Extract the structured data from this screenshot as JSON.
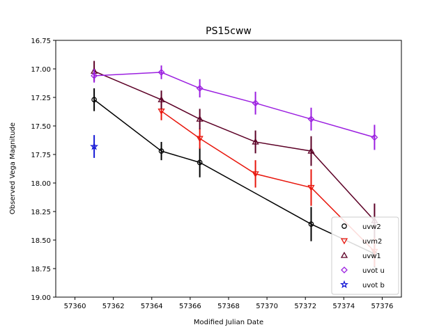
{
  "chart_data": {
    "type": "scatter",
    "title": "PS15cww",
    "xlabel": "Modified Julian Date",
    "ylabel": "Observed Vega Magnitude",
    "xlim": [
      57359,
      57377
    ],
    "ylim": [
      16.75,
      19.0
    ],
    "y_inverted": true,
    "xticks": [
      57360,
      57362,
      57364,
      57366,
      57368,
      57370,
      57372,
      57374,
      57376
    ],
    "yticks": [
      16.75,
      17.0,
      17.25,
      17.5,
      17.75,
      18.0,
      18.25,
      18.5,
      18.75,
      19.0
    ],
    "xtick_labels": [
      "57360",
      "57362",
      "57364",
      "57366",
      "57368",
      "57370",
      "57372",
      "57374",
      "57376"
    ],
    "ytick_labels": [
      "16.75",
      "17.00",
      "17.25",
      "17.50",
      "17.75",
      "18.00",
      "18.25",
      "18.50",
      "18.75",
      "19.00"
    ],
    "grid": false,
    "legend_position": "lower-right",
    "series": [
      {
        "name": "uvw2",
        "color": "#000000",
        "marker": "circle",
        "x": [
          57361.0,
          57364.5,
          57366.5,
          57372.3,
          57375.6
        ],
        "y": [
          17.27,
          17.72,
          17.82,
          18.36,
          18.62
        ],
        "yerr": [
          0.1,
          0.08,
          0.13,
          0.15,
          0.12
        ]
      },
      {
        "name": "uvm2",
        "color": "#e8160c",
        "marker": "triangle-down",
        "x": [
          57364.5,
          57366.5,
          57369.4,
          57372.3,
          57375.6
        ],
        "y": [
          17.37,
          17.61,
          17.92,
          18.04,
          18.6
        ],
        "yerr": [
          0.08,
          0.09,
          0.12,
          0.16,
          0.13
        ]
      },
      {
        "name": "uvw1",
        "color": "#5c0026",
        "marker": "triangle-up",
        "x": [
          57361.0,
          57364.5,
          57366.5,
          57369.4,
          57372.3,
          57375.6
        ],
        "y": [
          17.02,
          17.27,
          17.44,
          17.64,
          17.72,
          18.33
        ],
        "yerr": [
          0.09,
          0.08,
          0.09,
          0.1,
          0.13,
          0.15
        ]
      },
      {
        "name": "uvot u",
        "color": "#9b1fe0",
        "marker": "diamond",
        "x": [
          57361.0,
          57364.5,
          57366.5,
          57369.4,
          57372.3,
          57375.6
        ],
        "y": [
          17.06,
          17.03,
          17.17,
          17.3,
          17.44,
          17.6
        ],
        "yerr": [
          0.06,
          0.06,
          0.08,
          0.1,
          0.1,
          0.11
        ]
      },
      {
        "name": "uvot b",
        "color": "#1518d6",
        "marker": "star",
        "x": [
          57361.0
        ],
        "y": [
          17.68
        ],
        "yerr": [
          0.1
        ]
      }
    ]
  }
}
